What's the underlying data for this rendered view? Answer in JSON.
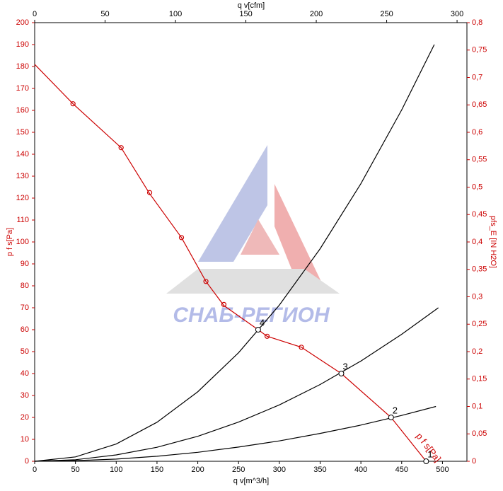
{
  "chart_data": {
    "type": "line",
    "xlabel": "q v[m^3/h]",
    "x2label": "q v[cfm]",
    "ylabel": "p f s[Pa]",
    "y2label": "pfs_E [IN H2O]",
    "xlim": [
      0,
      530
    ],
    "xticks": [
      0,
      50,
      100,
      150,
      200,
      250,
      300,
      350,
      400,
      450,
      500
    ],
    "x2lim": [
      0,
      307
    ],
    "x2ticks": [
      0,
      50,
      100,
      150,
      200,
      250,
      300
    ],
    "ylim": [
      0,
      200
    ],
    "yticks": [
      0,
      10,
      20,
      30,
      40,
      50,
      60,
      70,
      80,
      90,
      100,
      110,
      120,
      130,
      140,
      150,
      160,
      170,
      180,
      190,
      200
    ],
    "y2lim": [
      0,
      0.8
    ],
    "y2ticks": [
      0,
      {
        "value": 0.05,
        "label": "0,05"
      },
      {
        "value": 0.1,
        "label": "0,1"
      },
      {
        "value": 0.15,
        "label": "0,15"
      },
      {
        "value": 0.2,
        "label": "0,2"
      },
      {
        "value": 0.25,
        "label": "0,25"
      },
      {
        "value": 0.3,
        "label": "0,3"
      },
      {
        "value": 0.35,
        "label": "0,35"
      },
      {
        "value": 0.4,
        "label": "0,4"
      },
      {
        "value": 0.45,
        "label": "0,45"
      },
      {
        "value": 0.5,
        "label": "0,5"
      },
      {
        "value": 0.55,
        "label": "0,55"
      },
      {
        "value": 0.6,
        "label": "0,6"
      },
      {
        "value": 0.65,
        "label": "0,65"
      },
      {
        "value": 0.7,
        "label": "0,7"
      },
      {
        "value": 0.75,
        "label": "0,75"
      },
      {
        "value": 0.8,
        "label": "0,8"
      }
    ],
    "annotation": "p f s[Pa]",
    "watermark": "СНАБ-РЕГИОН",
    "series": [
      {
        "color": "#cc0000",
        "x": [
          0,
          47,
          106,
          141,
          180,
          210,
          232,
          274,
          285,
          327,
          376,
          437,
          480
        ],
        "values": [
          181,
          163,
          143,
          122,
          102,
          82,
          71,
          60,
          57,
          52,
          40,
          20,
          0
        ]
      },
      {
        "color": "#cc0000",
        "line": false,
        "marker": "dot",
        "x": [
          47,
          106,
          141,
          180,
          210,
          232,
          285,
          327,
          437
        ],
        "values": [
          163,
          143,
          122.5,
          102,
          82,
          71.5,
          57,
          52,
          20
        ]
      },
      {
        "color": "#000000",
        "x": [
          0,
          50,
          100,
          150,
          200,
          250,
          300,
          350,
          400,
          450,
          490
        ],
        "values": [
          0,
          2,
          7.9,
          17.8,
          31.7,
          49.5,
          71.2,
          96.9,
          126.6,
          160.2,
          190
        ]
      },
      {
        "color": "#000000",
        "x": [
          0,
          50,
          100,
          150,
          200,
          250,
          300,
          350,
          400,
          450,
          495
        ],
        "values": [
          0,
          0.7,
          2.9,
          6.4,
          11.4,
          17.9,
          25.7,
          35,
          45.7,
          57.9,
          70
        ]
      },
      {
        "color": "#000000",
        "x": [
          0,
          50,
          100,
          150,
          200,
          250,
          300,
          350,
          400,
          450,
          492
        ],
        "values": [
          0,
          0.3,
          1,
          2.3,
          4.1,
          6.5,
          9.3,
          12.7,
          16.5,
          20.9,
          25
        ]
      },
      {
        "color": "#000000",
        "line": false,
        "marker": "open",
        "x": [
          480,
          437,
          376,
          274
        ],
        "values": [
          0,
          20,
          40,
          60
        ],
        "labels": [
          "1",
          "2",
          "3",
          "4"
        ]
      }
    ]
  }
}
